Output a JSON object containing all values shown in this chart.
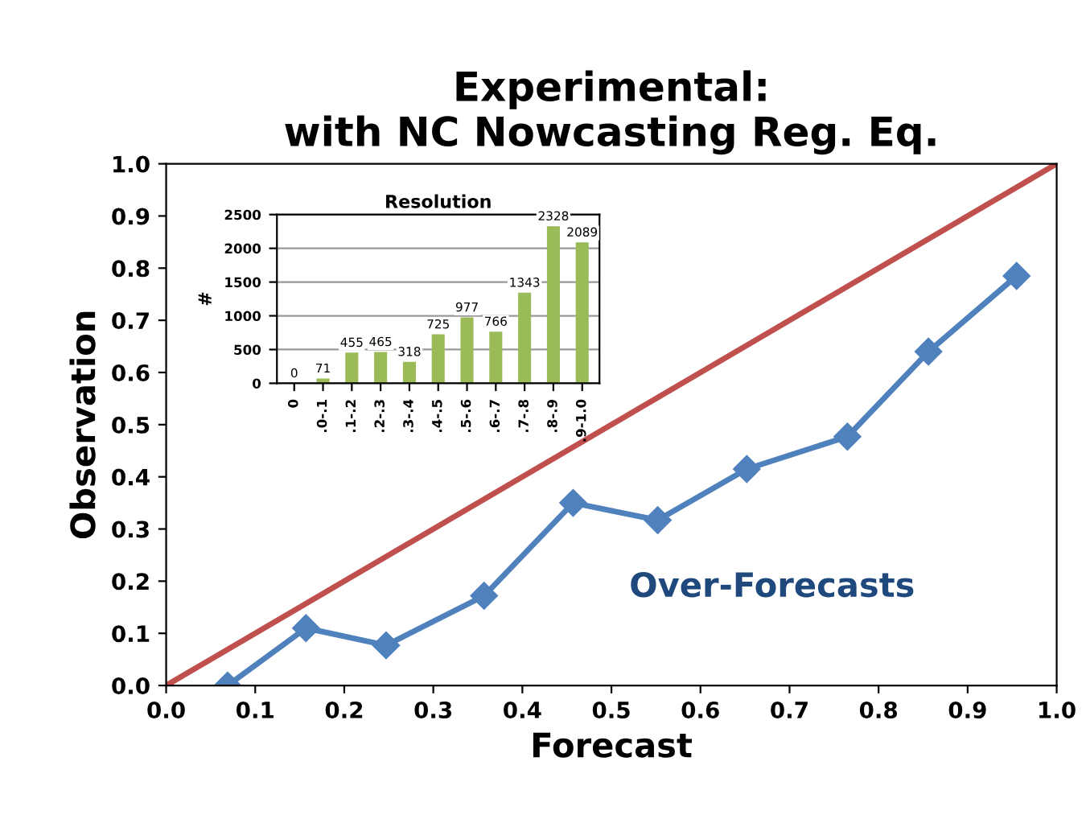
{
  "chart_data": [
    {
      "type": "line",
      "title": "Experimental:\nwith NC Nowcasting Reg. Eq.",
      "xlabel": "Forecast",
      "ylabel": "Observation",
      "xlim": [
        0,
        1
      ],
      "ylim": [
        0,
        1
      ],
      "xticks": [
        {
          "value": 0,
          "label": "0.0"
        },
        0.1,
        0.2,
        0.3,
        0.4,
        0.5,
        0.6,
        0.7,
        0.8,
        0.9,
        {
          "value": 1,
          "label": "1.0"
        }
      ],
      "yticks": [
        {
          "value": 0,
          "label": "0.0"
        },
        0.1,
        0.2,
        0.3,
        0.4,
        0.5,
        0.6,
        0.7,
        0.8,
        0.9,
        {
          "value": 1,
          "label": "1.0"
        }
      ],
      "series": [
        {
          "color": "#c0504d",
          "x": [
            0,
            1
          ],
          "values": [
            0,
            1
          ],
          "marker": "none"
        },
        {
          "color": "#4f81bd",
          "x": [
            0.069,
            0.157,
            0.247,
            0.357,
            0.457,
            0.552,
            0.652,
            0.765,
            0.856,
            0.955
          ],
          "values": [
            0.0,
            0.11,
            0.077,
            0.172,
            0.35,
            0.317,
            0.415,
            0.477,
            0.64,
            0.785
          ],
          "marker": "diamond"
        }
      ],
      "annotations": [
        "Over-Forecasts"
      ],
      "grid": false,
      "legend": false
    },
    {
      "type": "bar",
      "title": "Resolution",
      "ylabel": "#",
      "categories": [
        "0",
        ".0-.1",
        ".1-.2",
        ".2-.3",
        ".3-.4",
        ".4-.5",
        ".5-.6",
        ".6-.7",
        ".7-.8",
        ".8-.9",
        ".9-1.0"
      ],
      "values": [
        0,
        71,
        455,
        465,
        318,
        725,
        977,
        766,
        1343,
        2328,
        2089
      ],
      "color": "#9bbb59",
      "ylim": [
        0,
        2500
      ],
      "yticks": [
        0,
        500,
        1000,
        1500,
        2000,
        2500
      ],
      "grid": "y",
      "data_labels": true,
      "legend": false
    }
  ]
}
